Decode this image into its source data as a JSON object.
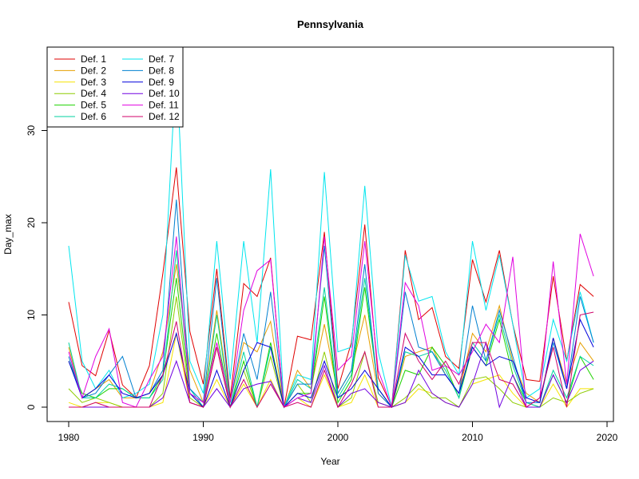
{
  "chart_data": {
    "type": "line",
    "title": "Pennsylvania",
    "xlabel": "Year",
    "ylabel": "Day_max",
    "xlim": [
      1980,
      2020
    ],
    "ylim": [
      0,
      38
    ],
    "xticks": [
      1980,
      1990,
      2000,
      2010,
      2020
    ],
    "yticks": [
      0,
      10,
      20,
      30
    ],
    "grid": false,
    "legend_position": "top-left",
    "x": [
      1980,
      1981,
      1982,
      1983,
      1984,
      1985,
      1986,
      1987,
      1988,
      1989,
      1990,
      1991,
      1992,
      1993,
      1994,
      1995,
      1996,
      1997,
      1998,
      1999,
      2000,
      2001,
      2002,
      2003,
      2004,
      2005,
      2006,
      2007,
      2008,
      2009,
      2010,
      2011,
      2012,
      2013,
      2014,
      2015,
      2016,
      2017,
      2018,
      2019
    ],
    "series": [
      {
        "name": "Def. 1",
        "color": "#DF0000",
        "values": [
          11.4,
          4.5,
          3.4,
          8.3,
          2.4,
          1.0,
          4.5,
          14.5,
          26.0,
          8.2,
          2.5,
          15.0,
          1.0,
          13.4,
          12.0,
          16.2,
          0.0,
          7.7,
          7.3,
          19.0,
          2.0,
          7.0,
          19.8,
          3.2,
          0.1,
          17.0,
          9.5,
          10.8,
          5.5,
          4.2,
          16.0,
          11.4,
          17.0,
          9.0,
          3.0,
          2.8,
          14.2,
          5.0,
          13.3,
          12.0
        ]
      },
      {
        "name": "Def. 2",
        "color": "#E69F00",
        "values": [
          6.5,
          1.0,
          2.0,
          3.0,
          1.0,
          1.0,
          1.5,
          6.0,
          15.5,
          4.0,
          0.5,
          10.5,
          0.5,
          7.0,
          6.0,
          9.3,
          0.0,
          4.0,
          2.0,
          9.0,
          1.5,
          4.0,
          10.0,
          1.5,
          0.0,
          5.5,
          6.0,
          6.5,
          3.5,
          1.5,
          8.0,
          6.0,
          11.0,
          5.0,
          1.5,
          0.5,
          7.5,
          2.5,
          7.0,
          5.0
        ]
      },
      {
        "name": "Def. 3",
        "color": "#F5E400",
        "values": [
          0.5,
          0.0,
          0.5,
          0.5,
          0.0,
          0.0,
          0.0,
          0.5,
          8.0,
          0.5,
          0.0,
          3.0,
          0.0,
          2.5,
          0.0,
          3.0,
          0.0,
          1.0,
          0.0,
          3.5,
          0.0,
          0.5,
          3.5,
          0.0,
          0.0,
          0.5,
          2.0,
          1.5,
          0.5,
          0.0,
          2.5,
          3.0,
          3.5,
          1.5,
          0.0,
          0.0,
          2.5,
          0.0,
          2.0,
          2.0
        ]
      },
      {
        "name": "Def. 4",
        "color": "#8ECC00",
        "values": [
          2.0,
          0.5,
          1.0,
          0.5,
          0.0,
          0.0,
          0.0,
          1.5,
          12.0,
          1.0,
          0.0,
          6.5,
          0.0,
          4.0,
          0.0,
          5.5,
          0.0,
          2.5,
          0.5,
          6.0,
          0.0,
          1.0,
          6.0,
          0.5,
          0.0,
          1.0,
          2.5,
          1.0,
          1.0,
          0.0,
          3.0,
          3.3,
          2.0,
          0.5,
          0.0,
          0.0,
          1.0,
          0.5,
          1.5,
          2.0
        ]
      },
      {
        "name": "Def. 5",
        "color": "#1ED200",
        "values": [
          5.0,
          1.5,
          1.0,
          2.0,
          2.0,
          1.0,
          1.0,
          3.5,
          14.0,
          1.5,
          0.0,
          8.0,
          0.0,
          5.0,
          0.0,
          7.0,
          0.0,
          1.5,
          1.5,
          12.0,
          0.5,
          3.0,
          13.0,
          2.0,
          0.0,
          4.0,
          3.5,
          6.5,
          4.5,
          1.0,
          6.5,
          4.5,
          9.5,
          3.5,
          0.5,
          0.0,
          3.5,
          0.5,
          5.5,
          3.0
        ]
      },
      {
        "name": "Def. 6",
        "color": "#00D2A0",
        "values": [
          7.0,
          1.0,
          1.0,
          2.5,
          2.0,
          1.0,
          1.0,
          3.0,
          17.0,
          2.0,
          0.0,
          10.0,
          0.0,
          6.0,
          0.0,
          6.5,
          0.0,
          3.0,
          2.0,
          13.0,
          1.0,
          3.5,
          14.0,
          2.0,
          0.0,
          6.0,
          5.5,
          6.0,
          4.0,
          1.0,
          7.0,
          5.0,
          10.0,
          4.5,
          0.5,
          0.0,
          4.0,
          1.0,
          5.5,
          4.5
        ]
      },
      {
        "name": "Def. 7",
        "color": "#00E5EE",
        "values": [
          17.5,
          5.0,
          2.0,
          4.0,
          1.0,
          1.5,
          2.5,
          10.0,
          37.5,
          5.0,
          1.5,
          18.0,
          3.0,
          18.0,
          7.0,
          25.8,
          0.0,
          3.5,
          3.0,
          25.5,
          6.0,
          6.5,
          24.0,
          6.0,
          0.0,
          16.5,
          11.5,
          12.0,
          6.0,
          3.5,
          18.0,
          10.5,
          16.5,
          9.0,
          1.0,
          2.0,
          9.5,
          5.0,
          12.5,
          7.0
        ]
      },
      {
        "name": "Def. 8",
        "color": "#0080D0",
        "values": [
          5.5,
          1.0,
          1.5,
          3.5,
          5.5,
          1.0,
          1.5,
          4.0,
          22.5,
          2.0,
          0.5,
          14.0,
          0.5,
          8.0,
          3.0,
          12.5,
          0.0,
          2.5,
          2.5,
          17.5,
          1.5,
          4.0,
          15.5,
          1.5,
          0.0,
          12.5,
          6.5,
          6.0,
          3.5,
          1.5,
          11.0,
          5.0,
          10.5,
          5.5,
          0.5,
          0.5,
          7.0,
          2.0,
          12.0,
          7.0
        ]
      },
      {
        "name": "Def. 9",
        "color": "#0000DC",
        "values": [
          5.0,
          1.0,
          2.0,
          3.5,
          1.5,
          1.0,
          1.5,
          3.5,
          8.0,
          1.5,
          0.0,
          4.0,
          0.0,
          4.0,
          7.0,
          6.5,
          0.0,
          1.5,
          1.0,
          5.0,
          1.0,
          2.0,
          4.0,
          2.0,
          0.0,
          6.5,
          5.5,
          3.5,
          3.5,
          1.5,
          6.5,
          4.5,
          5.5,
          5.0,
          1.0,
          0.5,
          7.5,
          2.0,
          9.5,
          6.5
        ]
      },
      {
        "name": "Def. 10",
        "color": "#7000E0",
        "values": [
          0.0,
          0.0,
          0.0,
          0.0,
          0.0,
          0.0,
          0.0,
          1.0,
          5.0,
          0.5,
          0.0,
          2.0,
          0.0,
          2.0,
          2.5,
          2.8,
          0.0,
          1.0,
          0.5,
          4.5,
          0.0,
          1.5,
          2.0,
          0.5,
          0.0,
          0.5,
          4.0,
          1.5,
          0.5,
          0.0,
          2.5,
          7.0,
          0.0,
          3.5,
          0.0,
          0.0,
          3.5,
          0.5,
          4.0,
          5.0
        ]
      },
      {
        "name": "Def. 11",
        "color": "#E000E0",
        "values": [
          6.0,
          1.0,
          5.5,
          8.5,
          0.5,
          0.0,
          3.0,
          5.5,
          18.5,
          1.5,
          0.5,
          7.0,
          0.5,
          10.5,
          14.8,
          16.0,
          0.0,
          1.0,
          1.5,
          18.5,
          4.0,
          5.5,
          18.0,
          4.0,
          0.0,
          13.5,
          11.0,
          4.0,
          4.5,
          3.5,
          6.0,
          9.0,
          7.0,
          16.3,
          0.0,
          1.0,
          15.8,
          2.5,
          18.8,
          14.2
        ]
      },
      {
        "name": "Def. 12",
        "color": "#D0006A",
        "values": [
          0.0,
          0.0,
          0.5,
          0.0,
          0.0,
          0.0,
          0.0,
          3.5,
          9.3,
          0.5,
          0.0,
          6.5,
          0.0,
          3.0,
          0.0,
          2.5,
          0.0,
          0.5,
          0.0,
          4.0,
          0.0,
          2.5,
          6.0,
          0.0,
          0.0,
          8.0,
          5.0,
          3.0,
          5.0,
          2.5,
          7.0,
          7.0,
          3.0,
          2.5,
          0.0,
          1.0,
          6.5,
          0.0,
          10.0,
          10.3
        ]
      }
    ]
  }
}
